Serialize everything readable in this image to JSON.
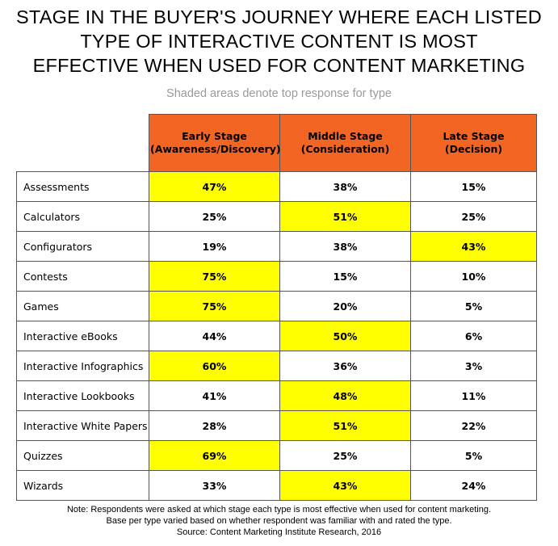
{
  "title_lines": [
    "STAGE IN THE BUYER'S JOURNEY WHERE EACH LISTED",
    "TYPE OF INTERACTIVE CONTENT IS MOST",
    "EFFECTIVE WHEN USED FOR CONTENT MARKETING"
  ],
  "subtitle": "Shaded areas denote top response for type",
  "colors": {
    "header": "#f26522",
    "highlight": "#ffff00",
    "border": "#555555",
    "subtitle": "#9a9a9a"
  },
  "chart_data": {
    "type": "table",
    "columns": [
      {
        "line1": "Early Stage",
        "line2": "(Awareness/Discovery)"
      },
      {
        "line1": "Middle Stage",
        "line2": "(Consideration)"
      },
      {
        "line1": "Late Stage",
        "line2": "(Decision)"
      }
    ],
    "rows": [
      {
        "label": "Assessments",
        "values": [
          "47%",
          "38%",
          "15%"
        ],
        "top": 0
      },
      {
        "label": "Calculators",
        "values": [
          "25%",
          "51%",
          "25%"
        ],
        "top": 1
      },
      {
        "label": "Configurators",
        "values": [
          "19%",
          "38%",
          "43%"
        ],
        "top": 2
      },
      {
        "label": "Contests",
        "values": [
          "75%",
          "15%",
          "10%"
        ],
        "top": 0
      },
      {
        "label": "Games",
        "values": [
          "75%",
          "20%",
          "5%"
        ],
        "top": 0
      },
      {
        "label": "Interactive eBooks",
        "values": [
          "44%",
          "50%",
          "6%"
        ],
        "top": 1
      },
      {
        "label": "Interactive Infographics",
        "values": [
          "60%",
          "36%",
          "3%"
        ],
        "top": 0
      },
      {
        "label": "Interactive Lookbooks",
        "values": [
          "41%",
          "48%",
          "11%"
        ],
        "top": 1
      },
      {
        "label": "Interactive White Papers",
        "values": [
          "28%",
          "51%",
          "22%"
        ],
        "top": 1
      },
      {
        "label": "Quizzes",
        "values": [
          "69%",
          "25%",
          "5%"
        ],
        "top": 0
      },
      {
        "label": "Wizards",
        "values": [
          "33%",
          "43%",
          "24%"
        ],
        "top": 1
      }
    ]
  },
  "note_lines": [
    "Note: Respondents were asked at which stage each type is most effective when used for content marketing.",
    "Base per type varied based on whether respondent was familiar with and rated the type.",
    "Source: Content Marketing Institute Research, 2016"
  ]
}
